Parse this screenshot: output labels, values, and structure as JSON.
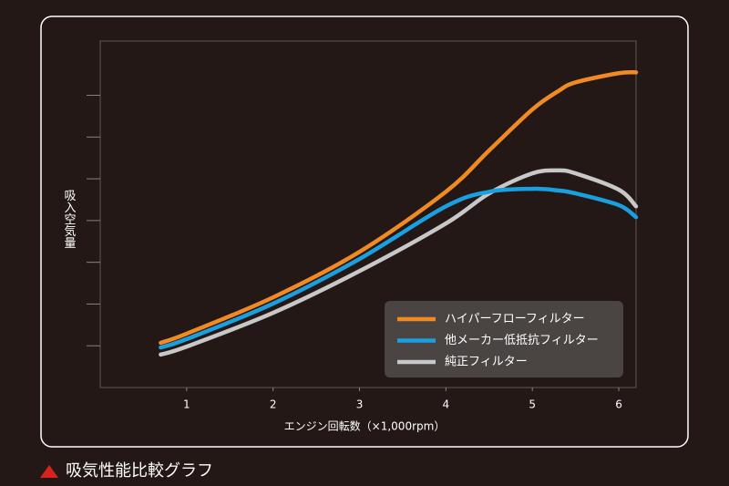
{
  "chart_data": {
    "type": "line",
    "caption": "吸気性能比較グラフ",
    "x_label": "エンジン回転数（×1,000rpm）",
    "y_label": "吸入空気量",
    "x": [
      0.7,
      1,
      2,
      3,
      4,
      4.5,
      5,
      5.3,
      5.5,
      6,
      6.2
    ],
    "series": [
      {
        "name": "ハイパーフローフィルター",
        "color": "#f08a24",
        "values": [
          1.07,
          1.29,
          2.16,
          3.25,
          4.69,
          5.68,
          6.66,
          7.1,
          7.31,
          7.53,
          7.55
        ]
      },
      {
        "name": "他メーカー低抵抗フィルター",
        "color": "#1a9fe0",
        "values": [
          0.96,
          1.16,
          2.01,
          3.08,
          4.34,
          4.69,
          4.76,
          4.72,
          4.65,
          4.37,
          4.08
        ]
      },
      {
        "name": "純正フィルター",
        "color": "#c8c8c8",
        "values": [
          0.79,
          0.98,
          1.79,
          2.79,
          3.93,
          4.65,
          5.13,
          5.2,
          5.13,
          4.74,
          4.34
        ]
      }
    ],
    "xlim": [
      0,
      6.2
    ],
    "ylim": [
      0,
      8.3
    ],
    "xticks": [
      1,
      2,
      3,
      4,
      5,
      6
    ],
    "yticks": [
      1,
      2,
      3,
      4,
      5,
      6,
      7
    ],
    "legend": "lower right"
  }
}
